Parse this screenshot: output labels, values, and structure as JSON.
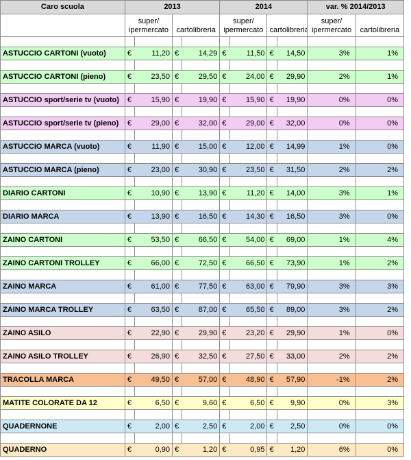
{
  "header": {
    "title": "Caro scuola",
    "year1": "2013",
    "year2": "2014",
    "variation": "var. % 2014/2013",
    "col_super": "super/ ipermercato",
    "col_carto": "cartolibreria"
  },
  "currency": "€",
  "colors": {
    "green": "#ccffcc",
    "pink": "#f2ccf2",
    "blue": "#c5d5ea",
    "rose": "#f4dcdc",
    "orange": "#f8bf93",
    "yellow": "#ffffcc",
    "cyan": "#cde9f5",
    "tan": "#fde9c4"
  },
  "rows": [
    {
      "name": "ASTUCCIO  CARTONI (vuoto)",
      "s13": "11,20",
      "c13": "14,29",
      "s14": "11,50",
      "c14": "14,50",
      "vs": "3%",
      "vc": "1%",
      "color": "green"
    },
    {
      "name": "ASTUCCIO  CARTONI (pieno)",
      "s13": "23,50",
      "c13": "29,50",
      "s14": "24,00",
      "c14": "29,90",
      "vs": "2%",
      "vc": "1%",
      "color": "green"
    },
    {
      "name": "ASTUCCIO sport/serie tv (vuoto)",
      "s13": "15,90",
      "c13": "19,90",
      "s14": "15,90",
      "c14": "19,90",
      "vs": "0%",
      "vc": "0%",
      "color": "pink"
    },
    {
      "name": "ASTUCCIO sport/serie tv (pieno)",
      "s13": "29,00",
      "c13": "32,00",
      "s14": "29,00",
      "c14": "32,00",
      "vs": "0%",
      "vc": "0%",
      "color": "pink"
    },
    {
      "name": "ASTUCCIO MARCA (vuoto)",
      "s13": "11,90",
      "c13": "15,00",
      "s14": "12,00",
      "c14": "14,99",
      "vs": "1%",
      "vc": "0%",
      "color": "blue"
    },
    {
      "name": "ASTUCCIO  MARCA (pieno)",
      "s13": "23,00",
      "c13": "30,90",
      "s14": "23,50",
      "c14": "31,50",
      "vs": "2%",
      "vc": "2%",
      "color": "blue"
    },
    {
      "name": "DIARIO CARTONI",
      "s13": "10,90",
      "c13": "13,90",
      "s14": "11,20",
      "c14": "14,00",
      "vs": "3%",
      "vc": "1%",
      "color": "green"
    },
    {
      "name": "DIARIO MARCA",
      "s13": "13,90",
      "c13": "16,50",
      "s14": "14,30",
      "c14": "16,50",
      "vs": "3%",
      "vc": "0%",
      "color": "blue"
    },
    {
      "name": "ZAINO CARTONI",
      "s13": "53,50",
      "c13": "66,50",
      "s14": "54,00",
      "c14": "69,00",
      "vs": "1%",
      "vc": "4%",
      "color": "green"
    },
    {
      "name": "ZAINO CARTONI TROLLEY",
      "s13": "66,00",
      "c13": "72,50",
      "s14": "66,50",
      "c14": "73,90",
      "vs": "1%",
      "vc": "2%",
      "color": "green"
    },
    {
      "name": "ZAINO MARCA",
      "s13": "61,00",
      "c13": "77,50",
      "s14": "63,00",
      "c14": "79,90",
      "vs": "3%",
      "vc": "3%",
      "color": "blue"
    },
    {
      "name": "ZAINO MARCA TROLLEY",
      "s13": "63,50",
      "c13": "87,00",
      "s14": "65,50",
      "c14": "89,00",
      "vs": "3%",
      "vc": "2%",
      "color": "blue"
    },
    {
      "name": "ZAINO ASILO",
      "s13": "22,90",
      "c13": "29,90",
      "s14": "23,20",
      "c14": "29,90",
      "vs": "1%",
      "vc": "0%",
      "color": "rose"
    },
    {
      "name": "ZAINO ASILO TROLLEY",
      "s13": "26,90",
      "c13": "32,50",
      "s14": "27,50",
      "c14": "33,00",
      "vs": "2%",
      "vc": "2%",
      "color": "rose"
    },
    {
      "name": "TRACOLLA MARCA",
      "s13": "49,50",
      "c13": "57,00",
      "s14": "48,90",
      "c14": "57,90",
      "vs": "-1%",
      "vc": "2%",
      "color": "orange"
    },
    {
      "name": "MATITE COLORATE DA 12",
      "s13": "6,50",
      "c13": "9,60",
      "s14": "6,50",
      "c14": "9,90",
      "vs": "0%",
      "vc": "3%",
      "color": "yellow"
    },
    {
      "name": "QUADERNONE",
      "s13": "2,00",
      "c13": "2,50",
      "s14": "2,00",
      "c14": "2,50",
      "vs": "0%",
      "vc": "0%",
      "color": "cyan"
    },
    {
      "name": "QUADERNO",
      "s13": "0,90",
      "c13": "1,20",
      "s14": "0,95",
      "c14": "1,20",
      "vs": "6%",
      "vc": "0%",
      "color": "tan"
    }
  ]
}
